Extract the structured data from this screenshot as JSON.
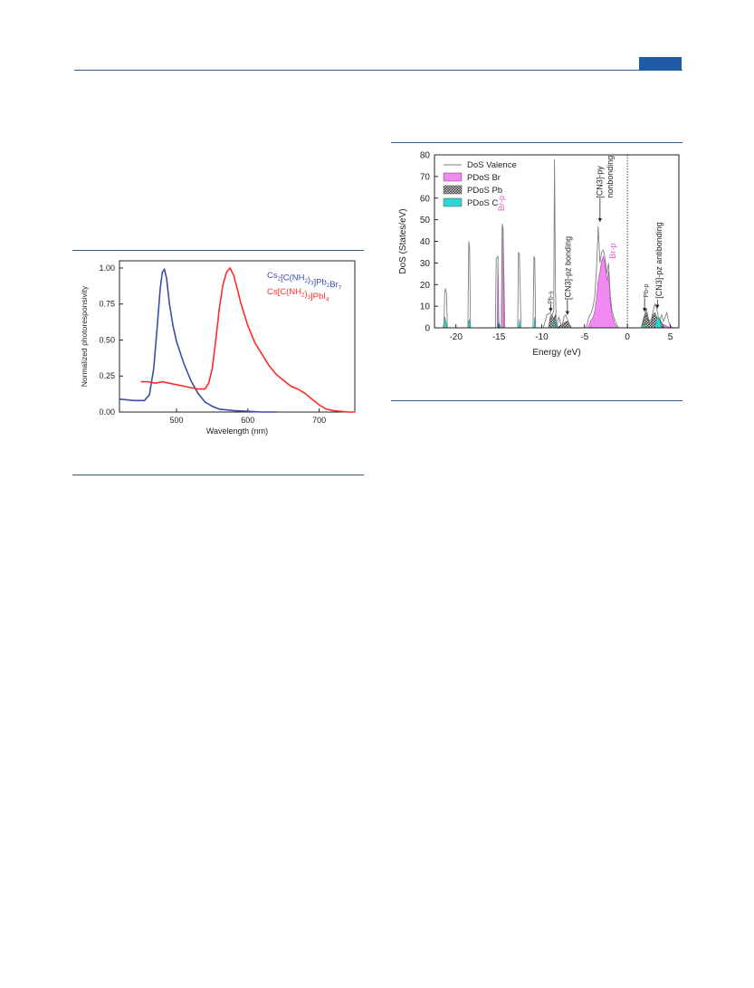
{
  "colors": {
    "rule": "#2f5f8a",
    "badge": "#1f5aa6",
    "series_blue": "#3b4ea3",
    "series_red": "#ff2a2a",
    "br_fill": "#f08af0",
    "br_label": "#e060e0",
    "c_fill": "#2fd3cf",
    "valence_line": "#808080"
  },
  "chart_data": [
    {
      "type": "line",
      "xlabel": "Wavelength (nm)",
      "ylabel": "Normalized photoresponsivity",
      "xlim": [
        420,
        750
      ],
      "ylim": [
        0,
        1.05
      ],
      "x_ticks": [
        "500",
        "600",
        "700"
      ],
      "y_ticks": [
        "0.00",
        "0.25",
        "0.50",
        "0.75",
        "1.00"
      ],
      "series": [
        {
          "name_parts": [
            [
              "Cs",
              ""
            ],
            [
              "2",
              "sub"
            ],
            [
              "[C(NH",
              ""
            ],
            [
              "2",
              "sub"
            ],
            [
              ")",
              ""
            ],
            [
              "3",
              "sub"
            ],
            [
              "]Pb",
              ""
            ],
            [
              "2",
              "sub"
            ],
            [
              "Br",
              ""
            ],
            [
              "7",
              "sub"
            ]
          ],
          "x": [
            420,
            440,
            455,
            462,
            468,
            473,
            477,
            480,
            483,
            486,
            490,
            495,
            500,
            510,
            520,
            530,
            540,
            550,
            560,
            580,
            600,
            620,
            640
          ],
          "y": [
            0.09,
            0.08,
            0.08,
            0.12,
            0.3,
            0.6,
            0.85,
            0.97,
            0.99,
            0.93,
            0.75,
            0.6,
            0.49,
            0.34,
            0.22,
            0.13,
            0.07,
            0.04,
            0.02,
            0.01,
            0.005,
            0.0,
            0.0
          ]
        },
        {
          "name_parts": [
            [
              "Cs[C(NH",
              ""
            ],
            [
              "2",
              "sub"
            ],
            [
              ")",
              ""
            ],
            [
              "3",
              "sub"
            ],
            [
              "]PbI",
              ""
            ],
            [
              "4",
              "sub"
            ]
          ],
          "x": [
            450,
            460,
            470,
            480,
            490,
            500,
            510,
            520,
            530,
            540,
            545,
            550,
            555,
            560,
            565,
            570,
            575,
            580,
            585,
            590,
            600,
            610,
            620,
            630,
            640,
            650,
            660,
            670,
            680,
            690,
            700,
            710,
            720,
            730,
            740,
            750
          ],
          "y": [
            0.21,
            0.21,
            0.2,
            0.21,
            0.2,
            0.19,
            0.18,
            0.17,
            0.16,
            0.16,
            0.2,
            0.3,
            0.5,
            0.72,
            0.88,
            0.97,
            1.0,
            0.95,
            0.86,
            0.76,
            0.6,
            0.48,
            0.4,
            0.32,
            0.26,
            0.22,
            0.18,
            0.16,
            0.13,
            0.09,
            0.05,
            0.02,
            0.01,
            0.005,
            0.0,
            0.0
          ]
        }
      ]
    },
    {
      "type": "area",
      "xlabel": "Energy (eV)",
      "ylabel": "DoS (States/eV)",
      "xlim": [
        -22.5,
        6
      ],
      "ylim": [
        0,
        80
      ],
      "x_ticks": [
        -20,
        -15,
        -10,
        -5,
        0,
        5
      ],
      "y_ticks": [
        0,
        10,
        20,
        30,
        40,
        50,
        60,
        70,
        80
      ],
      "fermi_level": 0,
      "legend": [
        "DoS Valence",
        "PDoS Br",
        "PDoS Pb",
        "PDoS C"
      ],
      "valence_x": [
        -22.0,
        -21.4,
        -21.3,
        -21.2,
        -21.1,
        -21.0,
        -20.5,
        -18.6,
        -18.5,
        -18.4,
        -18.3,
        -16.0,
        -15.4,
        -15.3,
        -15.1,
        -15.0,
        -14.9,
        -14.7,
        -14.6,
        -14.5,
        -14.3,
        -13.0,
        -12.8,
        -12.7,
        -12.6,
        -12.4,
        -11.0,
        -10.9,
        -10.8,
        -10.7,
        -10.5,
        -9.8,
        -9.4,
        -9.0,
        -8.8,
        -8.6,
        -8.5,
        -8.4,
        -8.3,
        -8.2,
        -8.1,
        -8.0,
        -7.8,
        -7.6,
        -7.4,
        -7.2,
        -7.0,
        -6.6,
        -6.5,
        -6.0,
        -4.8,
        -4.5,
        -4.2,
        -4.0,
        -3.8,
        -3.6,
        -3.4,
        -3.2,
        -3.0,
        -2.8,
        -2.6,
        -2.4,
        -2.2,
        -2.0,
        -1.8,
        -1.6,
        -1.4,
        -1.2,
        -1.0,
        1.6,
        1.8,
        2.0,
        2.2,
        2.4,
        2.6,
        2.8,
        3.0,
        3.2,
        3.4,
        3.6,
        3.8,
        4.0,
        4.2,
        4.4,
        4.6,
        4.8,
        5.0,
        5.3
      ],
      "valence_y": [
        0,
        0,
        17,
        18,
        16,
        0,
        0,
        0,
        40,
        37,
        0,
        0,
        0,
        32,
        33,
        0,
        0,
        0,
        48,
        46,
        0,
        0,
        0,
        35,
        34,
        0,
        0,
        33,
        32,
        0,
        0,
        0,
        6,
        7,
        5,
        8,
        78,
        20,
        0,
        0,
        4,
        5,
        2,
        1,
        5,
        6,
        4,
        0,
        0,
        0,
        0,
        5,
        7,
        10,
        15,
        28,
        47,
        30,
        35,
        36,
        32,
        25,
        30,
        15,
        8,
        5,
        3,
        1,
        0,
        0,
        3,
        6,
        9,
        5,
        3,
        4,
        8,
        11,
        9,
        5,
        4,
        6,
        3,
        5,
        7,
        3,
        1,
        0
      ],
      "br_x": [
        -15.2,
        -15.1,
        -15.0,
        -14.7,
        -14.6,
        -14.5,
        -14.4,
        -9.0,
        -8.8,
        -8.6,
        -8.4,
        -4.6,
        -4.3,
        -4.0,
        -3.8,
        -3.6,
        -3.4,
        -3.2,
        -3.0,
        -2.8,
        -2.6,
        -2.4,
        -2.2,
        -2.0,
        -1.8,
        -1.5,
        -1.2,
        2.0,
        2.5,
        3.0,
        3.5,
        4.0,
        4.5,
        5.0
      ],
      "br_y": [
        0,
        30,
        0,
        0,
        47,
        45,
        0,
        0,
        2,
        3,
        0,
        0,
        3,
        5,
        8,
        14,
        22,
        26,
        31,
        33,
        30,
        22,
        26,
        12,
        6,
        2,
        0,
        0,
        1,
        2,
        1,
        2,
        1,
        0
      ],
      "pb_x": [
        -9.2,
        -9.0,
        -8.8,
        -8.6,
        -8.4,
        -8.2,
        -7.5,
        -7.0,
        -6.5,
        1.6,
        1.8,
        2.0,
        2.2,
        2.4,
        2.6,
        2.8,
        3.0,
        3.2,
        3.4,
        3.6,
        3.8,
        4.0,
        4.3
      ],
      "pb_y": [
        0,
        5,
        6,
        4,
        6,
        0,
        2,
        3,
        0,
        0,
        2,
        5,
        7,
        4,
        2,
        3,
        6,
        7,
        5,
        3,
        4,
        2,
        0
      ],
      "c_x": [
        -21.5,
        -21.3,
        -21.0,
        -18.6,
        -18.45,
        -18.3,
        -15.2,
        -15.0,
        -14.8,
        -12.7,
        -12.6,
        -12.5,
        -10.9,
        -10.8,
        -10.7,
        -8.6,
        -8.5,
        -8.4,
        1.8,
        2.0,
        2.2,
        3.2,
        3.4,
        3.6,
        3.8,
        4.0
      ],
      "c_y": [
        0,
        5,
        0,
        0,
        4,
        0,
        0,
        3,
        0,
        0,
        4,
        0,
        0,
        5,
        0,
        0,
        4,
        0,
        0,
        2,
        0,
        0,
        4,
        5,
        3,
        0
      ],
      "annotations": {
        "br_p_low": "Br-p",
        "pb_s": "Pb-s",
        "cn3_bonding": "[CN3]-pz bonding",
        "cn3_nonbonding_1": "[CN3]-py",
        "cn3_nonbonding_2": "nonbonding",
        "br_p_high": "Br-p",
        "pb_p": "Pb-p",
        "cn3_antibonding": "[CN3]-pz antibonding"
      }
    }
  ]
}
